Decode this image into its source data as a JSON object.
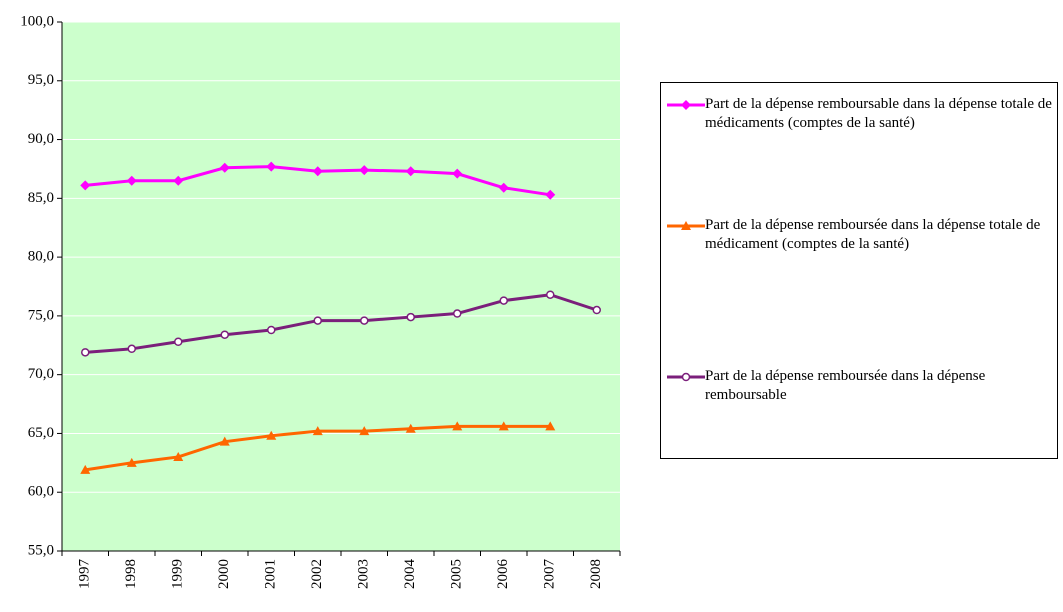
{
  "chart_data": {
    "type": "line",
    "categories": [
      "1997",
      "1998",
      "1999",
      "2000",
      "2001",
      "2002",
      "2003",
      "2004",
      "2005",
      "2006",
      "2007",
      "2008"
    ],
    "series": [
      {
        "name": "Part de la dépense remboursable dans la dépense totale de médicaments (comptes de la santé)",
        "color": "#ff00ff",
        "marker": "diamond",
        "values": [
          86.1,
          86.5,
          86.5,
          87.6,
          87.7,
          87.3,
          87.4,
          87.3,
          87.1,
          85.9,
          85.3,
          null
        ]
      },
      {
        "name": "Part de la dépense remboursée dans la dépense totale de médicament (comptes de la santé)",
        "color": "#ff6600",
        "marker": "triangle",
        "values": [
          61.9,
          62.5,
          63.0,
          64.3,
          64.8,
          65.2,
          65.2,
          65.4,
          65.6,
          65.6,
          65.6,
          null
        ]
      },
      {
        "name": "Part de la dépense remboursée dans la dépense remboursable",
        "color": "#7b1f7b",
        "marker": "circle",
        "values": [
          71.9,
          72.2,
          72.8,
          73.4,
          73.8,
          74.6,
          74.6,
          74.9,
          75.2,
          76.3,
          76.8,
          75.5
        ]
      }
    ],
    "ylim": [
      55,
      100
    ],
    "yticks": [
      {
        "value": 55,
        "label": "55,0"
      },
      {
        "value": 60,
        "label": "60,0"
      },
      {
        "value": 65,
        "label": "65,0"
      },
      {
        "value": 70,
        "label": "70,0"
      },
      {
        "value": 75,
        "label": "75,0"
      },
      {
        "value": 80,
        "label": "80,0"
      },
      {
        "value": 85,
        "label": "85,0"
      },
      {
        "value": 90,
        "label": "90,0"
      },
      {
        "value": 95,
        "label": "95,0"
      },
      {
        "value": 100,
        "label": "100,0"
      }
    ],
    "grid": true,
    "legend": "right",
    "background": "#ccffcc"
  }
}
